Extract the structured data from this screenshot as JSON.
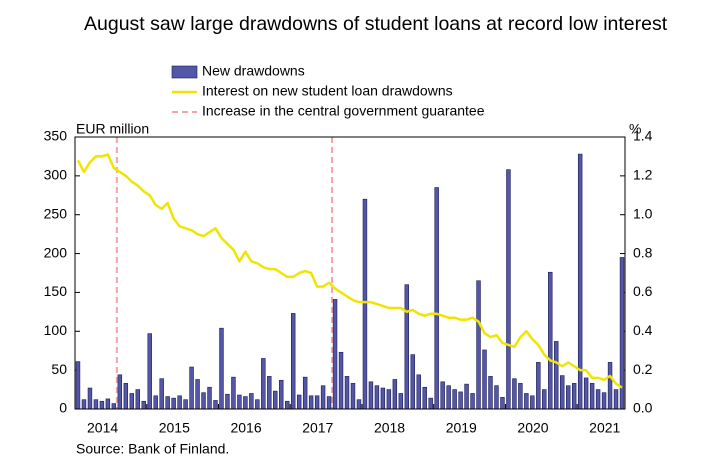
{
  "chart_data": {
    "type": "bar",
    "title": "August saw large drawdowns of student loans at record low interest",
    "y_label": "EUR million",
    "y2_label": "%",
    "source": "Source: Bank of Finland.",
    "categories": [
      "2014",
      null,
      null,
      null,
      null,
      null,
      null,
      null,
      null,
      null,
      null,
      null,
      "2015",
      null,
      null,
      null,
      null,
      null,
      null,
      null,
      null,
      null,
      null,
      null,
      "2016",
      null,
      null,
      null,
      null,
      null,
      null,
      null,
      null,
      null,
      null,
      null,
      "2017",
      null,
      null,
      null,
      null,
      null,
      null,
      null,
      null,
      null,
      null,
      null,
      "2018",
      null,
      null,
      null,
      null,
      null,
      null,
      null,
      null,
      null,
      null,
      null,
      "2019",
      null,
      null,
      null,
      null,
      null,
      null,
      null,
      null,
      null,
      null,
      null,
      "2020",
      null,
      null,
      null,
      null,
      null,
      null,
      null,
      null,
      null,
      null,
      null,
      "2021",
      null,
      null,
      null,
      null,
      null,
      null,
      null
    ],
    "series": [
      {
        "name": "New drawdowns",
        "type": "bar",
        "color": "#5457a8",
        "values": [
          61,
          12,
          27,
          12,
          10,
          13,
          7,
          44,
          33,
          20,
          25,
          10,
          97,
          17,
          39,
          16,
          14,
          17,
          12,
          54,
          38,
          21,
          28,
          11,
          104,
          19,
          41,
          18,
          16,
          20,
          12,
          65,
          42,
          23,
          37,
          10,
          123,
          18,
          41,
          17,
          17,
          30,
          16,
          141,
          73,
          42,
          33,
          12,
          270,
          35,
          30,
          27,
          25,
          38,
          20,
          160,
          70,
          44,
          28,
          14,
          285,
          35,
          30,
          25,
          22,
          32,
          20,
          165,
          76,
          42,
          30,
          15,
          308,
          39,
          33,
          20,
          17,
          60,
          25,
          176,
          87,
          43,
          30,
          33,
          328,
          40,
          33,
          25,
          21,
          60,
          25,
          195
        ]
      },
      {
        "name": "Interest on new student loan drawdowns",
        "type": "line",
        "axis": "y2",
        "color": "#f0e500",
        "values": [
          1.28,
          1.22,
          1.27,
          1.3,
          1.3,
          1.31,
          1.24,
          1.22,
          1.2,
          1.17,
          1.15,
          1.12,
          1.1,
          1.05,
          1.03,
          1.06,
          0.98,
          0.94,
          0.93,
          0.92,
          0.9,
          0.89,
          0.91,
          0.93,
          0.88,
          0.85,
          0.82,
          0.76,
          0.81,
          0.76,
          0.75,
          0.73,
          0.72,
          0.72,
          0.7,
          0.68,
          0.68,
          0.7,
          0.71,
          0.7,
          0.63,
          0.63,
          0.65,
          0.62,
          0.6,
          0.58,
          0.56,
          0.55,
          0.55,
          0.55,
          0.54,
          0.53,
          0.52,
          0.52,
          0.52,
          0.5,
          0.51,
          0.49,
          0.48,
          0.49,
          0.49,
          0.48,
          0.47,
          0.47,
          0.46,
          0.46,
          0.47,
          0.45,
          0.39,
          0.37,
          0.38,
          0.34,
          0.33,
          0.32,
          0.37,
          0.4,
          0.36,
          0.33,
          0.28,
          0.25,
          0.24,
          0.22,
          0.24,
          0.22,
          0.2,
          0.2,
          0.16,
          0.16,
          0.15,
          0.17,
          0.13,
          0.11
        ]
      }
    ],
    "guarantee_lines": {
      "name": "Increase in the central government guarantee",
      "color": "#f4a3ab",
      "category_index": [
        7,
        43
      ]
    },
    "ylim": [
      0,
      350
    ],
    "yticks": [
      0,
      50,
      100,
      150,
      200,
      250,
      300,
      350
    ],
    "y2lim": [
      0,
      1.4
    ],
    "y2ticks": [
      {
        "value": 0,
        "label": "0.0"
      },
      0.2,
      0.4,
      0.6,
      0.8,
      {
        "value": 1,
        "label": "1.0"
      },
      1.2,
      1.4
    ]
  }
}
